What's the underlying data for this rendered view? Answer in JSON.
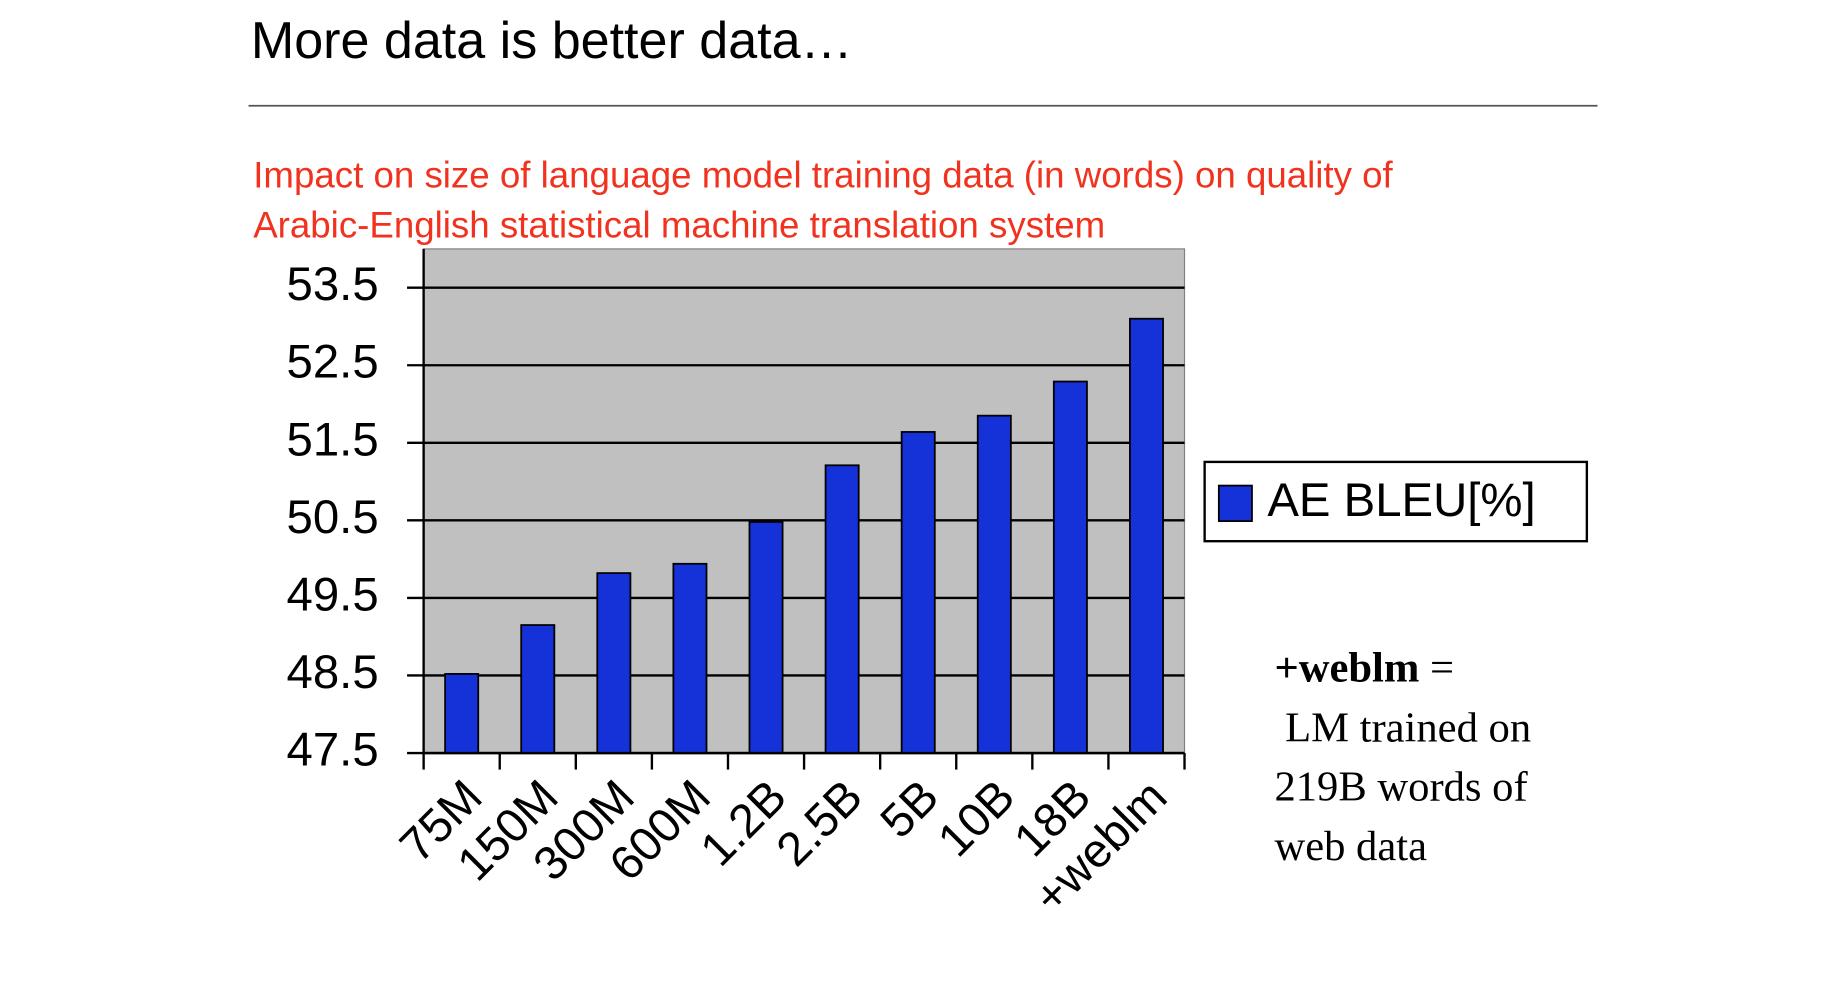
{
  "slide_title": "More data is better data…",
  "chart_data": {
    "type": "bar",
    "title": [
      "Impact on size of language model training data (in words) on quality of",
      "Arabic-English statistical machine translation system"
    ],
    "categories": [
      "75M",
      "150M",
      "300M",
      "600M",
      "1.2B",
      "2.5B",
      "5B",
      "10B",
      "18B",
      "+weblm"
    ],
    "series": [
      {
        "name": "AE BLEU[%]",
        "color": "#1432d8",
        "values": [
          48.52,
          49.15,
          49.82,
          49.94,
          50.48,
          51.21,
          51.64,
          51.85,
          52.29,
          53.1
        ]
      }
    ],
    "ylim": [
      47.5,
      54
    ],
    "yticks": [
      47.5,
      48.5,
      49.5,
      50.5,
      51.5,
      52.5,
      53.5
    ],
    "grid": true,
    "legend": "right"
  },
  "annotation": {
    "term": "+weblm",
    "lines": [
      "=",
      "LM trained on",
      "219B words of",
      "web data"
    ]
  }
}
